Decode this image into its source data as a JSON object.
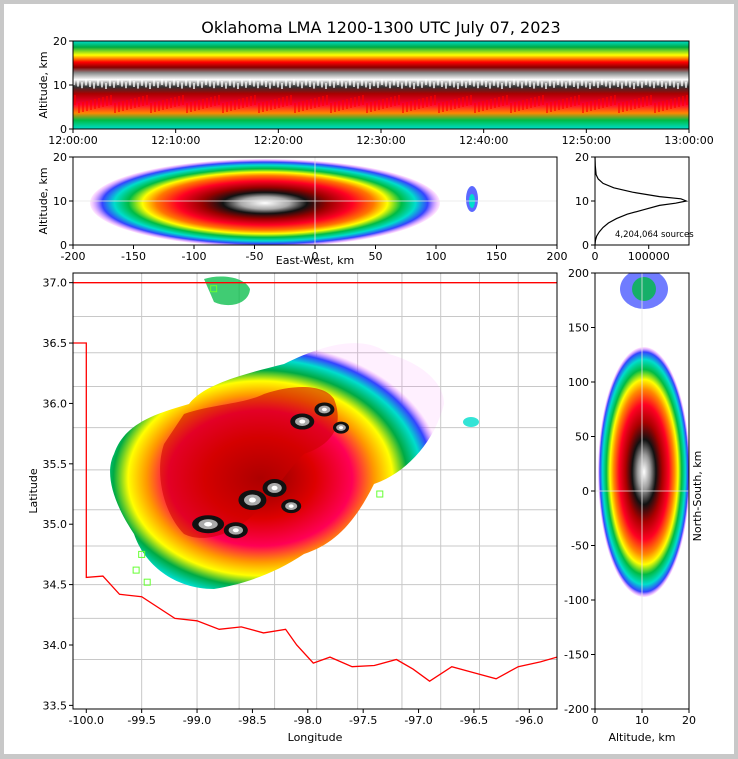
{
  "title": "Oklahoma LMA 1200-1300 UTC July 07, 2023",
  "chart_data": [
    {
      "id": "time-height",
      "type": "heatmap",
      "xlabel": "",
      "ylabel": "Altitude, km",
      "x_ticks": [
        "12:00:00",
        "12:10:00",
        "12:20:00",
        "12:30:00",
        "12:40:00",
        "12:50:00",
        "13:00:00"
      ],
      "y_ticks": [
        "0",
        "10",
        "20"
      ],
      "xlim": [
        "12:00:00",
        "13:00:00"
      ],
      "ylim": [
        0,
        20
      ]
    },
    {
      "id": "ew-altitude",
      "type": "heatmap",
      "xlabel": "East-West, km",
      "ylabel": "Altitude, km",
      "x_ticks": [
        "-200",
        "-150",
        "-100",
        "-50",
        "0",
        "50",
        "100",
        "150",
        "200"
      ],
      "y_ticks": [
        "0",
        "10",
        "20"
      ],
      "xlim": [
        -200,
        200
      ],
      "ylim": [
        0,
        20
      ]
    },
    {
      "id": "altitude-histogram",
      "type": "line",
      "xlabel": "",
      "ylabel": "",
      "x_ticks": [
        "0",
        "100000"
      ],
      "y_ticks": [
        "0",
        "10",
        "20"
      ],
      "xlim": [
        0,
        175000
      ],
      "ylim": [
        0,
        20
      ],
      "annotation": "4,204,064 sources",
      "x": [
        0,
        800,
        3000,
        8000,
        15000,
        25000,
        40000,
        60000,
        90000,
        120000,
        150000,
        170000,
        160000,
        120000,
        70000,
        35000,
        15000,
        6000,
        2000,
        500,
        0
      ],
      "y": [
        0,
        1,
        2,
        3,
        4,
        5,
        6,
        7,
        8,
        9,
        9.5,
        10,
        10.5,
        11,
        12,
        13,
        14,
        15,
        16,
        18,
        20
      ]
    },
    {
      "id": "plan-view",
      "type": "heatmap",
      "xlabel": "Longitude",
      "ylabel": "Latitude",
      "x_ticks": [
        "-100.0",
        "-99.5",
        "-99.0",
        "-98.5",
        "-98.0",
        "-97.5",
        "-97.0",
        "-96.5",
        "-96.0"
      ],
      "y_ticks": [
        "33.5",
        "34.0",
        "34.5",
        "35.0",
        "35.5",
        "36.0",
        "36.5",
        "37.0"
      ],
      "xlim": [
        -100.12,
        -95.75
      ],
      "ylim": [
        33.47,
        37.08
      ]
    },
    {
      "id": "ns-altitude",
      "type": "heatmap",
      "xlabel": "Altitude, km",
      "ylabel": "North-South, km",
      "x_ticks": [
        "0",
        "10",
        "20"
      ],
      "y_ticks": [
        "-200",
        "-150",
        "-100",
        "-50",
        "0",
        "50",
        "100",
        "150",
        "200"
      ],
      "xlim": [
        0,
        20
      ],
      "ylim": [
        -200,
        200
      ]
    }
  ],
  "colors": {
    "density_scale": [
      "#ff55ff",
      "#aa00ff",
      "#0000ff",
      "#00aaff",
      "#00ffaa",
      "#00aa44",
      "#228844",
      "#77dd00",
      "#ffff00",
      "#ffaa00",
      "#ff5500",
      "#ff0055",
      "#ff0000",
      "#cc0000",
      "#880000",
      "#000000",
      "#888888",
      "#cccccc",
      "#ffffff"
    ],
    "state_border": "#ff0000",
    "county_lines": "#bbbbbb",
    "station_markers": "#66ff33"
  }
}
